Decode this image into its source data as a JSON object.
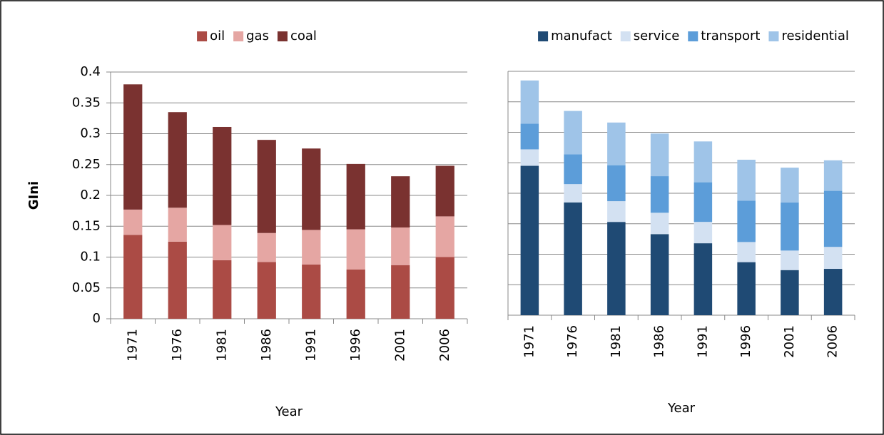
{
  "chart_data": [
    {
      "type": "stacked_bar",
      "legend": "top",
      "grid": true,
      "show_ytick_labels": true,
      "y_label": "GIni",
      "x_label": "Year",
      "categories": [
        "1971",
        "1976",
        "1981",
        "1986",
        "1991",
        "1996",
        "2001",
        "2006"
      ],
      "ylim": [
        0,
        0.4
      ],
      "yticks": [
        0,
        0.05,
        0.1,
        0.15,
        0.2,
        0.25,
        0.3,
        0.35,
        0.4
      ],
      "series": [
        {
          "name": "oil",
          "color": "#ab4b45",
          "values": [
            0.136,
            0.125,
            0.095,
            0.092,
            0.088,
            0.08,
            0.087,
            0.1
          ]
        },
        {
          "name": "gas",
          "color": "#e5a6a3",
          "values": [
            0.041,
            0.055,
            0.057,
            0.047,
            0.056,
            0.065,
            0.061,
            0.066
          ]
        },
        {
          "name": "coal",
          "color": "#7a3230",
          "values": [
            0.203,
            0.155,
            0.159,
            0.151,
            0.132,
            0.106,
            0.083,
            0.082
          ]
        }
      ]
    },
    {
      "type": "stacked_bar",
      "legend": "top",
      "grid": true,
      "show_ytick_labels": false,
      "x_label": "Year",
      "categories": [
        "1971",
        "1976",
        "1981",
        "1986",
        "1991",
        "1996",
        "2001",
        "2006"
      ],
      "ylim": [
        0,
        0.4
      ],
      "yticks": [
        0,
        0.05,
        0.1,
        0.15,
        0.2,
        0.25,
        0.3,
        0.35,
        0.4
      ],
      "series": [
        {
          "name": "manufact",
          "color": "#1f4a74",
          "values": [
            0.245,
            0.185,
            0.153,
            0.133,
            0.118,
            0.087,
            0.074,
            0.076
          ]
        },
        {
          "name": "service",
          "color": "#d3e1f2",
          "values": [
            0.027,
            0.03,
            0.034,
            0.035,
            0.035,
            0.033,
            0.032,
            0.036
          ]
        },
        {
          "name": "transport",
          "color": "#5c9dd9",
          "values": [
            0.042,
            0.049,
            0.059,
            0.06,
            0.065,
            0.068,
            0.079,
            0.092
          ]
        },
        {
          "name": "residential",
          "color": "#9fc4e8",
          "values": [
            0.071,
            0.071,
            0.07,
            0.07,
            0.067,
            0.067,
            0.057,
            0.05
          ]
        }
      ]
    }
  ]
}
